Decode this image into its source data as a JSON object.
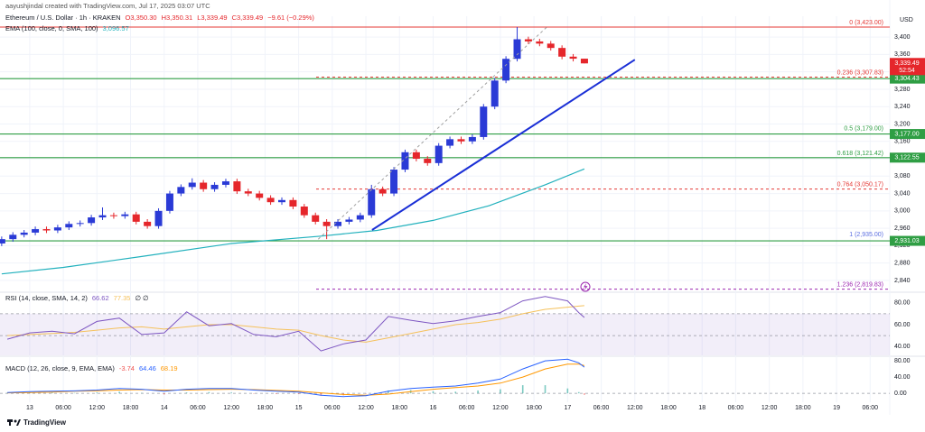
{
  "header": {
    "credit": "aayushjindal created with TradingView.com, Jul 17, 2025 03:07 UTC",
    "symbol": "Ethereum / U.S. Dollar · 1h · KRAKEN",
    "ohlc": [
      "O3,350.30",
      "H3,350.31",
      "L3,339.49",
      "C3,339.49"
    ],
    "change": "−9.61 (−0.29%)",
    "currency": "USD",
    "logo": "TradingView"
  },
  "chart_data": [
    {
      "type": "candlestick",
      "x": [
        -5,
        -3,
        -1,
        1,
        3,
        5,
        7,
        9,
        11,
        13,
        15,
        17,
        19,
        21,
        23,
        25,
        27,
        29,
        31,
        33,
        35,
        37,
        39,
        41,
        43,
        45,
        47,
        49,
        51,
        53,
        55,
        57,
        59,
        61,
        63,
        65,
        67,
        69,
        71,
        73,
        75,
        77,
        79,
        81,
        83,
        85,
        87,
        89,
        91,
        93,
        95,
        97,
        99
      ],
      "open": [
        2925,
        2935,
        2945,
        2950,
        2958,
        2955,
        2962,
        2970,
        2972,
        2985,
        2990,
        2988,
        2992,
        2975,
        2965,
        3000,
        3040,
        3055,
        3065,
        3050,
        3060,
        3068,
        3045,
        3040,
        3030,
        3020,
        3025,
        3010,
        2990,
        2975,
        2965,
        2975,
        2980,
        2990,
        3050,
        3040,
        3095,
        3135,
        3120,
        3110,
        3150,
        3165,
        3160,
        3170,
        3240,
        3300,
        3350,
        3395,
        3390,
        3385,
        3375,
        3355,
        3350.3
      ],
      "high": [
        2941,
        2951,
        2956,
        2964,
        2964,
        2968,
        2976,
        2978,
        2991,
        3008,
        2996,
        2998,
        2998,
        2981,
        3006,
        3046,
        3061,
        3075,
        3071,
        3066,
        3074,
        3074,
        3051,
        3046,
        3036,
        3031,
        3031,
        3016,
        2996,
        2981,
        2981,
        2986,
        2996,
        3060,
        3056,
        3101,
        3141,
        3141,
        3126,
        3156,
        3171,
        3171,
        3176,
        3246,
        3306,
        3356,
        3423,
        3401,
        3396,
        3391,
        3381,
        3361,
        3350.31
      ],
      "low": [
        2919,
        2929,
        2939,
        2944,
        2949,
        2949,
        2956,
        2964,
        2966,
        2979,
        2982,
        2982,
        2969,
        2959,
        2959,
        2994,
        3034,
        3049,
        3044,
        3044,
        3054,
        3039,
        3034,
        3024,
        3014,
        3014,
        3004,
        2984,
        2969,
        2935,
        2959,
        2969,
        2974,
        2984,
        3034,
        3034,
        3089,
        3114,
        3104,
        3104,
        3144,
        3154,
        3154,
        3164,
        3234,
        3294,
        3344,
        3384,
        3379,
        3369,
        3349,
        3344,
        3339.49
      ],
      "close": [
        2935,
        2945,
        2950,
        2958,
        2955,
        2962,
        2970,
        2972,
        2985,
        2990,
        2988,
        2992,
        2975,
        2965,
        3000,
        3040,
        3055,
        3065,
        3050,
        3060,
        3068,
        3045,
        3040,
        3030,
        3020,
        3025,
        3010,
        2990,
        2975,
        2965,
        2975,
        2980,
        2990,
        3050,
        3040,
        3095,
        3135,
        3120,
        3110,
        3150,
        3165,
        3160,
        3170,
        3240,
        3300,
        3350,
        3395,
        3390,
        3385,
        3375,
        3355,
        3350.3,
        3339.49
      ],
      "up_color": "#2a3ad6",
      "down_color": "#e5262b",
      "xlim": [
        -5.3,
        153.5
      ],
      "xticks": [
        {
          "value": 0,
          "label": "13"
        },
        {
          "value": 6,
          "label": "06:00"
        },
        {
          "value": 12,
          "label": "12:00"
        },
        {
          "value": 18,
          "label": "18:00"
        },
        {
          "value": 24,
          "label": "14"
        },
        {
          "value": 30,
          "label": "06:00"
        },
        {
          "value": 36,
          "label": "12:00"
        },
        {
          "value": 42,
          "label": "18:00"
        },
        {
          "value": 48,
          "label": "15"
        },
        {
          "value": 54,
          "label": "06:00"
        },
        {
          "value": 60,
          "label": "12:00"
        },
        {
          "value": 66,
          "label": "18:00"
        },
        {
          "value": 72,
          "label": "16"
        },
        {
          "value": 78,
          "label": "06:00"
        },
        {
          "value": 84,
          "label": "12:00"
        },
        {
          "value": 90,
          "label": "18:00"
        },
        {
          "value": 96,
          "label": "17"
        },
        {
          "value": 102,
          "label": "06:00"
        },
        {
          "value": 108,
          "label": "12:00"
        },
        {
          "value": 114,
          "label": "18:00"
        },
        {
          "value": 120,
          "label": "18"
        },
        {
          "value": 126,
          "label": "06:00"
        },
        {
          "value": 132,
          "label": "12:00"
        },
        {
          "value": 138,
          "label": "18:00"
        },
        {
          "value": 144,
          "label": "19"
        },
        {
          "value": 150,
          "label": "06:00"
        }
      ],
      "ylim": [
        2817,
        3448
      ],
      "yticks": [
        {
          "value": 2840,
          "label": "2,840"
        },
        {
          "value": 2880,
          "label": "2,880"
        },
        {
          "value": 2920,
          "label": "2,920"
        },
        {
          "value": 2960,
          "label": "2,960"
        },
        {
          "value": 3000,
          "label": "3,000"
        },
        {
          "value": 3040,
          "label": "3,040"
        },
        {
          "value": 3080,
          "label": "3,080"
        },
        {
          "value": 3120,
          "label": "3,120"
        },
        {
          "value": 3160,
          "label": "3,160"
        },
        {
          "value": 3200,
          "label": "3,200"
        },
        {
          "value": 3240,
          "label": "3,240"
        },
        {
          "value": 3280,
          "label": "3,280"
        },
        {
          "value": 3320,
          "label": "3,320"
        },
        {
          "value": 3360,
          "label": "3,360"
        },
        {
          "value": 3400,
          "label": "3,400"
        }
      ],
      "grid": true,
      "overlays": [
        {
          "name": "EMA (100, close, 0, SMA, 100)",
          "value_label": "3,096.57",
          "color": "#22b1bd",
          "x": [
            -5,
            6,
            20,
            36,
            52,
            62,
            72,
            82,
            92,
            99
          ],
          "values": [
            2855,
            2870,
            2895,
            2925,
            2942,
            2955,
            2978,
            3012,
            3060,
            3096.57
          ]
        }
      ],
      "horizontal_lines": [
        {
          "value": 3304.43,
          "label": "3,304.43",
          "color": "#2f9e44"
        },
        {
          "value": 3177,
          "label": "3,177.00",
          "color": "#2f9e44"
        },
        {
          "value": 3122.55,
          "label": "3,122.55",
          "color": "#2f9e44"
        },
        {
          "value": 2931.03,
          "label": "2,931.03",
          "color": "#2f9e44"
        }
      ],
      "fib_levels": [
        {
          "value": 3423,
          "label": "0 (3,423.00)",
          "color": "#e53935",
          "line": "solid"
        },
        {
          "value": 3307.83,
          "label": "0.236 (3,307.83)",
          "color": "#e53935",
          "line": "dashed"
        },
        {
          "value": 3179,
          "label": "0.5 (3,179.00)",
          "color": "#2f9e44",
          "line": "none"
        },
        {
          "value": 3121.42,
          "label": "0.618 (3,121.42)",
          "color": "#2f9e44",
          "line": "none"
        },
        {
          "value": 3050.17,
          "label": "0.764 (3,050.17)",
          "color": "#e53935",
          "line": "dashed"
        },
        {
          "value": 2935,
          "label": "1 (2,935.00)",
          "color": "#5b6ee1",
          "line": "none"
        },
        {
          "value": 2819.83,
          "label": "1.236 (2,819.83)",
          "color": "#9c27b0",
          "line": "dashed"
        }
      ],
      "trendlines": [
        {
          "color": "#1a2fd6",
          "width": 2,
          "dashed": false,
          "x": [
            61.1,
            108
          ],
          "values": [
            2956,
            3348
          ]
        },
        {
          "color": "#a0a0a0",
          "width": 1,
          "dashed": true,
          "x": [
            51.5,
            92.3
          ],
          "values": [
            2935,
            3423
          ]
        }
      ],
      "last_price": {
        "value": 3339.49,
        "label": "3,339.49",
        "countdown": "52:54",
        "color": "#e5262b"
      }
    },
    {
      "type": "line",
      "title": "RSI (14, close, SMA, 14, 2)",
      "extra_label": "∅ ∅",
      "x": [
        -4,
        0,
        4,
        8,
        12,
        16,
        20,
        24,
        28,
        32,
        36,
        40,
        44,
        48,
        52,
        56,
        60,
        64,
        68,
        72,
        76,
        80,
        84,
        88,
        92,
        96,
        98,
        99
      ],
      "series": [
        {
          "color": "#7e57c2",
          "value_label": "66.62",
          "values": [
            46.7,
            52.5,
            54,
            51.7,
            63,
            66,
            51,
            52.5,
            71.7,
            59,
            61,
            51,
            49,
            54,
            36,
            42.5,
            46,
            67.5,
            64,
            61,
            63.5,
            67.5,
            71,
            81.7,
            85.8,
            81.7,
            71,
            66.62
          ]
        },
        {
          "color": "#f5c15b",
          "value_label": "77.35",
          "values": [
            50,
            51,
            52,
            53,
            55,
            57,
            58,
            56,
            58,
            60,
            60,
            58,
            56,
            55,
            50,
            46,
            44,
            48,
            52,
            56,
            60,
            62,
            65,
            70,
            74,
            76,
            77,
            77.35
          ]
        }
      ],
      "ylim": [
        32,
        88
      ],
      "yticks": [
        {
          "value": 80,
          "label": "80.00"
        },
        {
          "value": 60,
          "label": "60.00"
        },
        {
          "value": 40,
          "label": "40.00"
        }
      ],
      "band": [
        30,
        70
      ],
      "band_color": "#7e57c2",
      "levels": [
        70,
        50
      ]
    },
    {
      "type": "line",
      "title": "MACD (12, 26, close, 9, EMA, EMA)",
      "x": [
        -4,
        0,
        4,
        8,
        12,
        16,
        20,
        24,
        28,
        32,
        36,
        40,
        44,
        48,
        52,
        56,
        60,
        64,
        68,
        72,
        76,
        80,
        84,
        88,
        92,
        96,
        98,
        99
      ],
      "histogram": {
        "value_label": "-3.74",
        "up_color": "#26a69a",
        "down_color": "#ef5350",
        "values": [
          1,
          2,
          2,
          1,
          2,
          4,
          1,
          -3,
          2,
          3,
          2,
          -1,
          -2,
          -2,
          -6,
          -5,
          -1,
          7,
          8,
          5,
          4,
          7,
          10,
          20,
          20,
          12,
          3,
          -3.74
        ]
      },
      "series": [
        {
          "color": "#2962ff",
          "value_label": "64.46",
          "values": [
            2,
            4,
            5,
            6,
            8,
            12,
            10,
            5,
            10,
            12,
            12,
            8,
            5,
            3,
            -5,
            -8,
            -6,
            5,
            12,
            15,
            18,
            25,
            35,
            60,
            80,
            84,
            75,
            64.46
          ]
        },
        {
          "color": "#ff9800",
          "value_label": "68.19",
          "values": [
            1,
            2,
            3,
            5,
            6,
            8,
            9,
            8,
            8,
            9,
            10,
            9,
            7,
            5,
            1,
            -3,
            -5,
            -2,
            4,
            10,
            14,
            18,
            25,
            40,
            60,
            72,
            72,
            68.19
          ]
        }
      ],
      "ylim": [
        -22,
        89
      ],
      "yticks": [
        {
          "value": 80,
          "label": "80.00"
        },
        {
          "value": 40,
          "label": "40.00"
        },
        {
          "value": 0,
          "label": "0.00"
        }
      ],
      "levels": [
        0
      ]
    }
  ]
}
